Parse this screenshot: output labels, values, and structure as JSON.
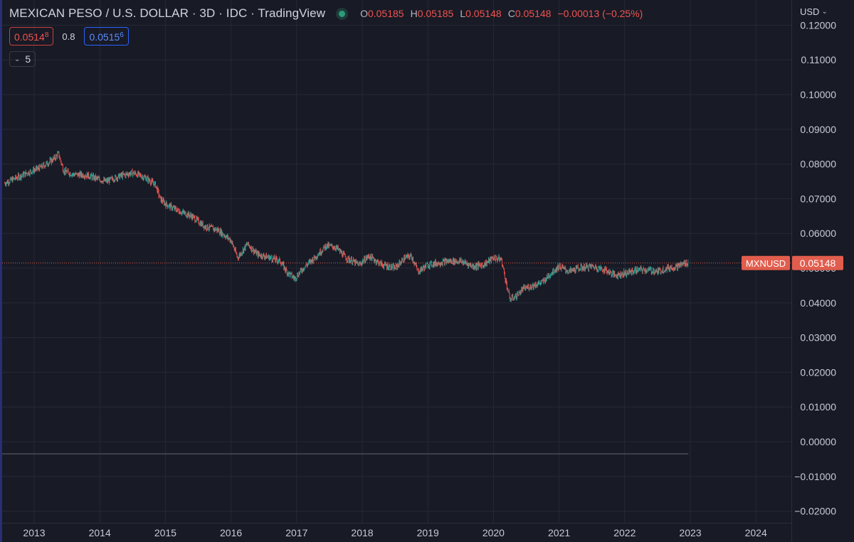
{
  "header": {
    "title": "MEXICAN PESO / U.S. DOLLAR · 3D · IDC · TradingView",
    "ohlc": {
      "o_label": "O",
      "o_value": "0.05185",
      "h_label": "H",
      "h_value": "0.05185",
      "l_label": "L",
      "l_value": "0.05148",
      "c_label": "C",
      "c_value": "0.05148",
      "change": "−0.00013 (−0.25%)"
    }
  },
  "trade": {
    "sell_price": "0.0514",
    "sell_sup": "8",
    "spread": "0.8",
    "buy_price": "0.0515",
    "buy_sup": "6"
  },
  "collapse": {
    "count": "5"
  },
  "currency_menu": {
    "label": "USD"
  },
  "colors": {
    "background": "#181a25",
    "up": "#26a69a",
    "down": "#ef5350",
    "grid": "#262a36",
    "axis_text": "#c8cbd3",
    "last_price": "#e25d4d"
  },
  "chart_data": {
    "type": "candlestick",
    "symbol": "MXNUSD",
    "interval": "3D",
    "last_price": 0.05148,
    "last_price_label": "0.05148",
    "ylim": [
      -0.0225,
      0.1225
    ],
    "xlim": [
      2012.55,
      2024.55
    ],
    "y_ticks": [
      "0.12000",
      "0.11000",
      "0.10000",
      "0.09000",
      "0.08000",
      "0.07000",
      "0.06000",
      "0.05000",
      "0.04000",
      "0.03000",
      "0.02000",
      "0.01000",
      "0.00000",
      "−0.01000",
      "−0.02000"
    ],
    "y_tick_values": [
      0.12,
      0.11,
      0.1,
      0.09,
      0.08,
      0.07,
      0.06,
      0.05,
      0.04,
      0.03,
      0.02,
      0.01,
      0.0,
      -0.01,
      -0.02
    ],
    "x_ticks": [
      "2013",
      "2014",
      "2015",
      "2016",
      "2017",
      "2018",
      "2019",
      "2020",
      "2021",
      "2022",
      "2023",
      "2024"
    ],
    "x_tick_values": [
      2013,
      2014,
      2015,
      2016,
      2017,
      2018,
      2019,
      2020,
      2021,
      2022,
      2023,
      2024
    ],
    "price_path": [
      [
        2012.55,
        0.0745
      ],
      [
        2012.9,
        0.0775
      ],
      [
        2013.1,
        0.079
      ],
      [
        2013.3,
        0.0815
      ],
      [
        2013.37,
        0.083
      ],
      [
        2013.45,
        0.078
      ],
      [
        2013.6,
        0.077
      ],
      [
        2013.8,
        0.0768
      ],
      [
        2014.0,
        0.0755
      ],
      [
        2014.1,
        0.075
      ],
      [
        2014.3,
        0.0765
      ],
      [
        2014.5,
        0.0775
      ],
      [
        2014.7,
        0.076
      ],
      [
        2014.85,
        0.074
      ],
      [
        2014.92,
        0.07
      ],
      [
        2015.0,
        0.0685
      ],
      [
        2015.2,
        0.0665
      ],
      [
        2015.4,
        0.065
      ],
      [
        2015.6,
        0.062
      ],
      [
        2015.8,
        0.061
      ],
      [
        2016.0,
        0.058
      ],
      [
        2016.1,
        0.053
      ],
      [
        2016.25,
        0.057
      ],
      [
        2016.4,
        0.054
      ],
      [
        2016.6,
        0.053
      ],
      [
        2016.75,
        0.052
      ],
      [
        2016.85,
        0.049
      ],
      [
        2016.97,
        0.047
      ],
      [
        2017.1,
        0.05
      ],
      [
        2017.3,
        0.0535
      ],
      [
        2017.45,
        0.0565
      ],
      [
        2017.6,
        0.056
      ],
      [
        2017.75,
        0.053
      ],
      [
        2017.95,
        0.051
      ],
      [
        2018.1,
        0.0535
      ],
      [
        2018.3,
        0.051
      ],
      [
        2018.5,
        0.05
      ],
      [
        2018.65,
        0.053
      ],
      [
        2018.75,
        0.0535
      ],
      [
        2018.85,
        0.049
      ],
      [
        2019.0,
        0.051
      ],
      [
        2019.3,
        0.052
      ],
      [
        2019.5,
        0.052
      ],
      [
        2019.7,
        0.0505
      ],
      [
        2019.85,
        0.051
      ],
      [
        2020.0,
        0.053
      ],
      [
        2020.12,
        0.0525
      ],
      [
        2020.18,
        0.047
      ],
      [
        2020.25,
        0.041
      ],
      [
        2020.35,
        0.042
      ],
      [
        2020.45,
        0.044
      ],
      [
        2020.6,
        0.045
      ],
      [
        2020.75,
        0.046
      ],
      [
        2020.9,
        0.049
      ],
      [
        2021.0,
        0.0505
      ],
      [
        2021.15,
        0.049
      ],
      [
        2021.3,
        0.05
      ],
      [
        2021.5,
        0.0505
      ],
      [
        2021.7,
        0.0495
      ],
      [
        2021.85,
        0.048
      ],
      [
        2022.0,
        0.0485
      ],
      [
        2022.2,
        0.0495
      ],
      [
        2022.35,
        0.0495
      ],
      [
        2022.5,
        0.049
      ],
      [
        2022.65,
        0.05
      ],
      [
        2022.8,
        0.0505
      ],
      [
        2022.92,
        0.0515
      ],
      [
        2022.97,
        0.05148
      ]
    ],
    "volume_level": -0.0035,
    "volume_end_x": 2022.97,
    "grid": true,
    "legend": "top-left"
  }
}
